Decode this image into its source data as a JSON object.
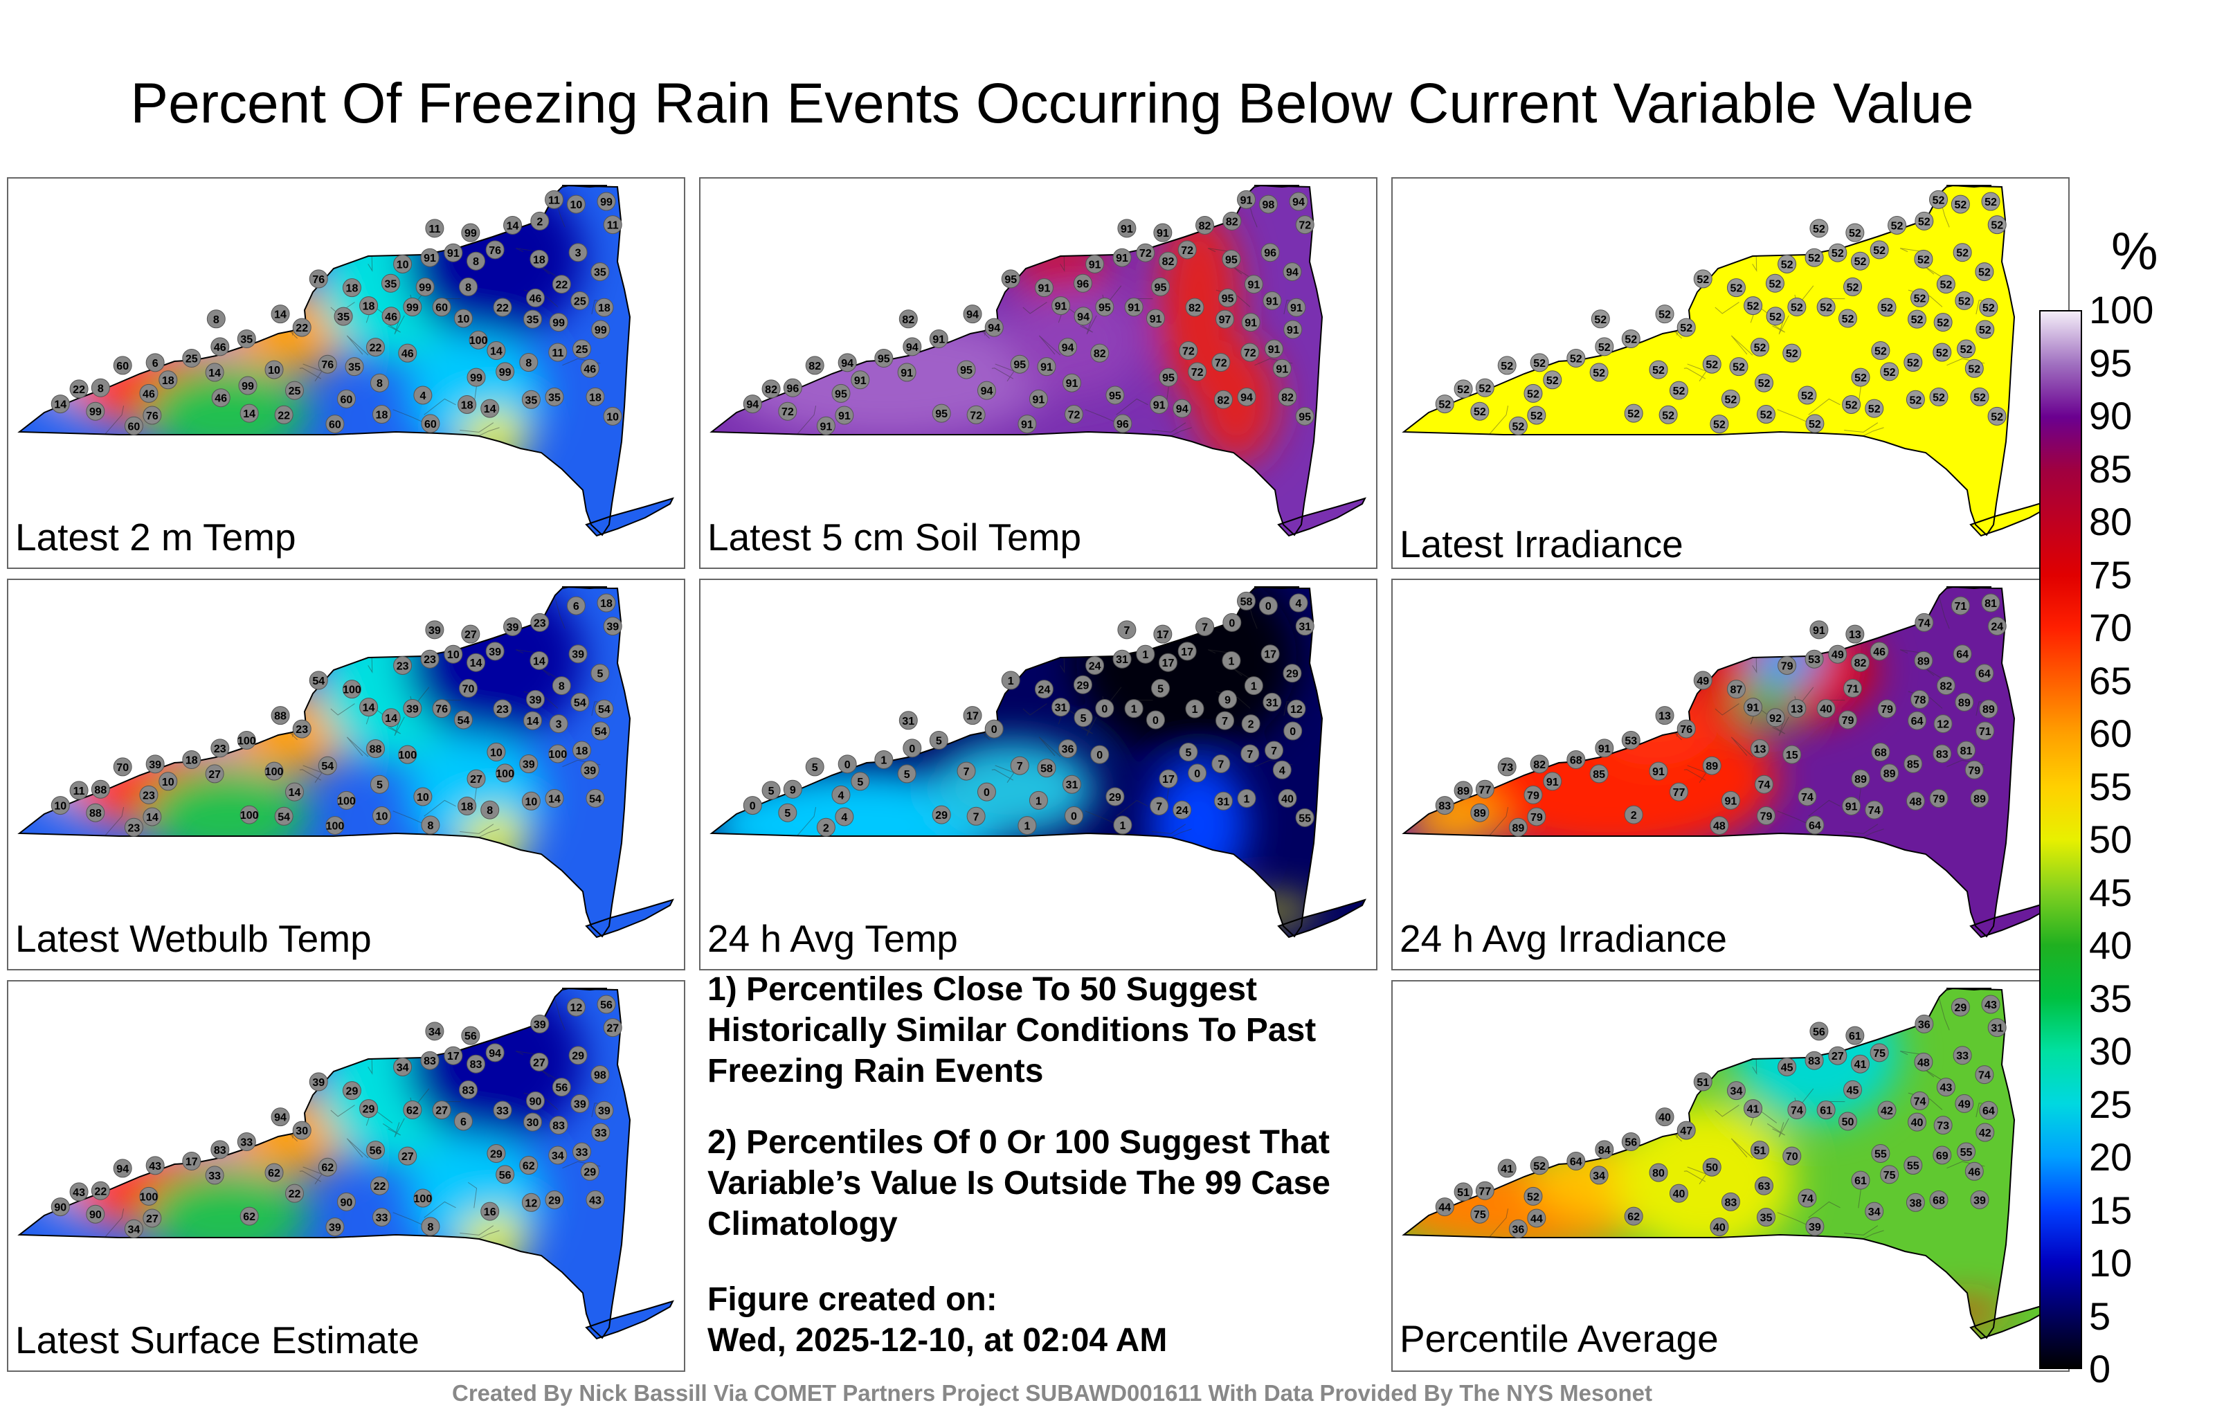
{
  "title": "Percent Of Freezing Rain Events Occurring Below Current Variable Value",
  "panels": [
    {
      "label": "Latest 2 m Temp",
      "scheme": "mixed",
      "station_values": [
        22,
        46,
        25,
        18,
        10,
        2,
        14,
        35,
        46,
        8,
        6,
        10,
        91,
        60,
        22,
        11,
        35,
        8,
        14,
        18,
        14,
        60,
        99,
        99,
        99,
        60,
        76,
        91,
        3,
        4,
        35,
        99,
        99,
        76,
        60,
        99,
        22,
        25,
        35,
        10,
        8,
        8,
        25,
        35,
        76,
        46,
        22,
        14,
        14,
        18,
        18,
        8,
        11,
        46,
        25,
        99,
        60,
        18,
        22,
        14,
        18,
        11,
        10,
        60,
        46,
        76,
        99,
        18,
        46,
        18,
        14,
        22,
        35,
        8,
        35,
        10,
        11,
        46,
        35,
        99,
        100,
        99
      ]
    },
    {
      "label": "Latest 5 cm Soil Temp",
      "scheme": "purple-red",
      "station_values": [
        82,
        91,
        94,
        72,
        91,
        82,
        94,
        97,
        82,
        95,
        94,
        98,
        72,
        96,
        94,
        72,
        82,
        91,
        95,
        91,
        94,
        82,
        91,
        95,
        72,
        91,
        95,
        91,
        96,
        95,
        94,
        91,
        72,
        95,
        91,
        91,
        94,
        95,
        94,
        91,
        82,
        72,
        91,
        91,
        91,
        95,
        91,
        94,
        91,
        82,
        91,
        96,
        72,
        95,
        91,
        94,
        91,
        95,
        82,
        72,
        91,
        91,
        95,
        91,
        94,
        72,
        95,
        91,
        94,
        91,
        82,
        72,
        96,
        82,
        91,
        95,
        91
      ]
    },
    {
      "label": "Latest Irradiance",
      "scheme": "uniform",
      "station_values": [
        52,
        52,
        52,
        52,
        52,
        52,
        52,
        52,
        52,
        52,
        52,
        52,
        52,
        52,
        52,
        52,
        52,
        52,
        52,
        52,
        52,
        52,
        52,
        52,
        52,
        52,
        52,
        52,
        52,
        52,
        52,
        52,
        52,
        52,
        52,
        52,
        52,
        52,
        52,
        52,
        52,
        52,
        52,
        52,
        52,
        52,
        52,
        52,
        52,
        52,
        52,
        52,
        52,
        52,
        52,
        52,
        52,
        52,
        52,
        52,
        52,
        52,
        52,
        52,
        52,
        52,
        52,
        52,
        52,
        52,
        52,
        52,
        52,
        52,
        52,
        52,
        52
      ]
    },
    {
      "label": "Latest Wetbulb Temp",
      "scheme": "mixed",
      "station_values": [
        23,
        39,
        14,
        10,
        54,
        23,
        8,
        14,
        100,
        70,
        39,
        6,
        10,
        8,
        88,
        39,
        10,
        5,
        100,
        100,
        88,
        70,
        3,
        39,
        100,
        76,
        54,
        23,
        39,
        10,
        5,
        27,
        88,
        54,
        100,
        54,
        23,
        18,
        14,
        23,
        14,
        39,
        54,
        100,
        14,
        23,
        8,
        10,
        27,
        54,
        14,
        88,
        100,
        39,
        18,
        18,
        23,
        14,
        11,
        10,
        54,
        39,
        100,
        100,
        23,
        39,
        27,
        10,
        14,
        18,
        39,
        54
      ]
    },
    {
      "label": "24 h Avg Temp",
      "scheme": "dark-blue",
      "station_values": [
        1,
        4,
        0,
        0,
        0,
        0,
        24,
        7,
        0,
        5,
        0,
        0,
        1,
        1,
        36,
        31,
        31,
        31,
        29,
        24,
        17,
        5,
        2,
        0,
        0,
        1,
        1,
        31,
        17,
        29,
        29,
        17,
        5,
        7,
        1,
        0,
        0,
        1,
        1,
        24,
        17,
        7,
        31,
        5,
        4,
        4,
        1,
        0,
        5,
        40,
        31,
        9,
        7,
        9,
        7,
        4,
        2,
        1,
        5,
        5,
        12,
        7,
        7,
        1,
        0,
        17,
        17,
        5,
        5,
        7,
        7,
        7,
        29,
        31,
        58,
        55,
        58
      ]
    },
    {
      "label": "24 h Avg Irradiance",
      "scheme": "red-purple",
      "station_values": [
        79,
        79,
        77,
        79,
        79,
        74,
        74,
        64,
        15,
        71,
        82,
        71,
        49,
        64,
        13,
        24,
        48,
        74,
        2,
        87,
        13,
        73,
        12,
        13,
        89,
        40,
        49,
        53,
        64,
        74,
        64,
        13,
        89,
        89,
        48,
        71,
        76,
        68,
        79,
        79,
        82,
        85,
        89,
        53,
        79,
        79,
        82,
        83,
        85,
        89,
        91,
        77,
        83,
        78,
        81,
        81,
        89,
        89,
        89,
        68,
        89,
        91,
        91,
        91,
        91,
        46,
        89,
        91,
        92,
        91
      ]
    },
    {
      "label": "Latest Surface Estimate",
      "scheme": "mixed",
      "station_values": [
        33,
        29,
        22,
        33,
        6,
        39,
        16,
        30,
        27,
        83,
        43,
        12,
        17,
        8,
        56,
        27,
        12,
        22,
        62,
        29,
        94,
        94,
        83,
        62,
        56,
        27,
        39,
        83,
        29,
        100,
        98,
        56,
        90,
        62,
        39,
        33,
        30,
        17,
        29,
        34,
        83,
        62,
        39,
        33,
        27,
        100,
        56,
        90,
        33,
        43,
        29,
        22,
        34,
        90,
        33,
        56,
        34,
        27,
        43,
        29,
        39,
        34,
        62,
        90,
        83,
        94
      ]
    },
    {
      "label": "Percentile Average",
      "scheme": "yellow-green",
      "station_values": [
        42,
        46,
        40,
        35,
        50,
        36,
        34,
        40,
        70,
        45,
        52,
        29,
        27,
        39,
        51,
        31,
        38,
        63,
        62,
        34,
        40,
        41,
        73,
        74,
        75,
        61,
        51,
        83,
        33,
        74,
        74,
        61,
        75,
        50,
        40,
        42,
        47,
        64,
        68,
        45,
        41,
        55,
        49,
        56,
        44,
        52,
        43,
        44,
        34,
        39,
        41,
        77,
        69,
        74,
        55,
        43,
        36,
        48,
        51,
        55,
        64,
        56,
        80,
        83,
        84,
        75,
        61
      ]
    }
  ],
  "colorbar": {
    "unit": "%",
    "ticks": [
      "0",
      "5",
      "10",
      "15",
      "20",
      "25",
      "30",
      "35",
      "40",
      "45",
      "50",
      "55",
      "60",
      "65",
      "70",
      "75",
      "80",
      "85",
      "90",
      "95",
      "100"
    ]
  },
  "notes": {
    "note1": "1) Percentiles Close To 50 Suggest Historically Similar Conditions To Past Freezing Rain Events",
    "note2": "2) Percentiles Of 0 Or 100 Suggest That Variable’s Value Is Outside The 99 Case Climatology",
    "created_label": "Figure created on:",
    "created_date": "Wed, 2025-12-10, at 02:04 AM"
  },
  "credit": "Created By Nick Bassill Via COMET Partners Project SUBAWD001611 With Data Provided By The NYS Mesonet"
}
